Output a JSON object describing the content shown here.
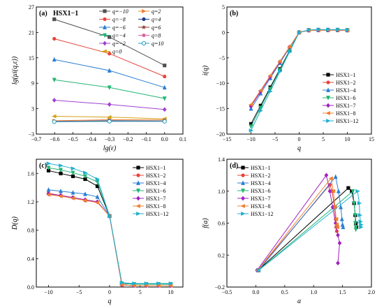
{
  "chart_data": [
    {
      "id": "a",
      "panel_label": "(a)",
      "title": "HSX1−1",
      "type": "line",
      "xlabel": "lg(ε)",
      "ylabel": "lg(μi(q,ε))",
      "xlim": [
        -0.7,
        0.1
      ],
      "ylim": [
        -3,
        27
      ],
      "xticks": [
        -0.7,
        -0.6,
        -0.5,
        -0.4,
        -0.3,
        -0.2,
        -0.1,
        0.0,
        0.1
      ],
      "xtick_labels": [
        "−0.7",
        "−0.6",
        "−0.5",
        "−0.4",
        "−0.3",
        "−0.2",
        "−0.1",
        "0.0",
        "0.1"
      ],
      "yticks": [
        -3,
        3,
        9,
        15,
        21,
        27
      ],
      "ytick_labels": [
        "−3",
        "3",
        "9",
        "15",
        "21",
        "27"
      ],
      "x": [
        -0.602,
        -0.301,
        0.0
      ],
      "legend_cols": 2,
      "series": [
        {
          "name": "q=−10",
          "marker": "square",
          "color": "#505050",
          "values": [
            24.1,
            19.9,
            13.2
          ]
        },
        {
          "name": "q=−8",
          "marker": "circle",
          "color": "#e8453c",
          "values": [
            19.5,
            16.0,
            10.6
          ]
        },
        {
          "name": "q=−6",
          "marker": "triangle-up",
          "color": "#2a7fd4",
          "values": [
            14.6,
            12.0,
            8.0
          ]
        },
        {
          "name": "q=−4",
          "marker": "triangle-down",
          "color": "#22b573",
          "values": [
            9.8,
            8.0,
            5.4
          ]
        },
        {
          "name": "q=−2",
          "marker": "diamond",
          "color": "#a040d0",
          "values": [
            5.0,
            4.0,
            2.8
          ]
        },
        {
          "name": "q=0",
          "marker": "triangle-left",
          "color": "#d4a017",
          "values": [
            1.2,
            1.0,
            0.6
          ]
        },
        {
          "name": "q=2",
          "marker": "triangle-right",
          "color": "#f08030",
          "values": [
            0.15,
            0.4,
            0.35
          ]
        },
        {
          "name": "q=4",
          "marker": "hexagon",
          "color": "#1a3a8a",
          "values": [
            0.02,
            0.15,
            0.1
          ]
        },
        {
          "name": "q=6",
          "marker": "star",
          "color": "#8b3a2a",
          "values": [
            -0.02,
            0.05,
            0.05
          ]
        },
        {
          "name": "q=8",
          "marker": "pentagon",
          "color": "#e060a0",
          "values": [
            -0.05,
            0.02,
            0.02
          ]
        },
        {
          "name": "q=10",
          "marker": "circle-open",
          "color": "#20a0c0",
          "values": [
            -0.08,
            0.0,
            0.0
          ]
        }
      ]
    },
    {
      "id": "b",
      "panel_label": "(b)",
      "type": "line",
      "xlabel": "q",
      "ylabel": "i(q)",
      "xlim": [
        -15,
        15
      ],
      "ylim": [
        -20,
        5
      ],
      "xticks": [
        -15,
        -10,
        -5,
        0,
        5,
        10,
        15
      ],
      "xtick_labels": [
        "−15",
        "−10",
        "−5",
        "0",
        "5",
        "10",
        "15"
      ],
      "yticks": [
        -20,
        -15,
        -10,
        -5,
        0,
        5
      ],
      "ytick_labels": [
        "−20",
        "−15",
        "−10",
        "−5",
        "0",
        "5"
      ],
      "x": [
        -10,
        -8,
        -6,
        -4,
        -2,
        0,
        2,
        4,
        6,
        8,
        10
      ],
      "legend_cols": 1,
      "series": [
        {
          "name": "HSX1−1",
          "marker": "square",
          "color": "#000000",
          "values": [
            -18.0,
            -14.4,
            -10.8,
            -7.2,
            -3.6,
            0.0,
            0.4,
            0.45,
            0.45,
            0.45,
            0.4
          ]
        },
        {
          "name": "HSX1−2",
          "marker": "circle",
          "color": "#e8453c",
          "values": [
            -14.5,
            -11.6,
            -8.7,
            -5.8,
            -2.9,
            0.0,
            0.4,
            0.45,
            0.45,
            0.45,
            0.4
          ]
        },
        {
          "name": "HSX1−4",
          "marker": "triangle-up",
          "color": "#2a7fd4",
          "values": [
            -15.0,
            -12.0,
            -9.0,
            -6.0,
            -3.0,
            0.0,
            0.45,
            0.5,
            0.5,
            0.5,
            0.45
          ]
        },
        {
          "name": "HSX1−6",
          "marker": "triangle-down",
          "color": "#22b573",
          "values": [
            -18.5,
            -14.8,
            -11.1,
            -7.4,
            -3.7,
            0.0,
            0.45,
            0.5,
            0.5,
            0.5,
            0.45
          ]
        },
        {
          "name": "HSX1−7",
          "marker": "diamond",
          "color": "#a020c0",
          "values": [
            -14.5,
            -11.6,
            -8.7,
            -5.8,
            -2.9,
            0.0,
            0.4,
            0.45,
            0.45,
            0.45,
            0.4
          ]
        },
        {
          "name": "HSX1−8",
          "marker": "triangle-left",
          "color": "#f08030",
          "values": [
            -14.2,
            -11.4,
            -8.5,
            -5.7,
            -2.85,
            0.0,
            0.4,
            0.45,
            0.45,
            0.45,
            0.4
          ]
        },
        {
          "name": "HSX1−12",
          "marker": "triangle-right",
          "color": "#20b0d0",
          "values": [
            -19.3,
            -15.4,
            -11.6,
            -7.7,
            -3.85,
            0.0,
            0.5,
            0.55,
            0.55,
            0.55,
            0.5
          ]
        }
      ]
    },
    {
      "id": "c",
      "panel_label": "(c)",
      "type": "line",
      "xlabel": "q",
      "ylabel": "D(q)",
      "xlim": [
        -12,
        12
      ],
      "ylim": [
        0.0,
        1.8
      ],
      "xticks": [
        -10,
        -5,
        0,
        5,
        10
      ],
      "xtick_labels": [
        "−10",
        "−5",
        "0",
        "5",
        "10"
      ],
      "yticks": [
        0.0,
        0.4,
        0.8,
        1.2,
        1.6
      ],
      "ytick_labels": [
        "0.0",
        "0.4",
        "0.8",
        "1.2",
        "1.6"
      ],
      "x": [
        -10,
        -8,
        -6,
        -4,
        -2,
        0,
        2,
        4,
        6,
        8,
        10
      ],
      "legend_cols": 1,
      "series": [
        {
          "name": "HSX1−1",
          "marker": "square",
          "color": "#000000",
          "values": [
            1.64,
            1.6,
            1.56,
            1.52,
            1.42,
            1.0,
            0.05,
            0.04,
            0.04,
            0.04,
            0.04
          ]
        },
        {
          "name": "HSX1−2",
          "marker": "circle",
          "color": "#e8453c",
          "values": [
            1.32,
            1.29,
            1.26,
            1.22,
            1.2,
            1.0,
            0.03,
            0.02,
            0.02,
            0.02,
            0.02
          ]
        },
        {
          "name": "HSX1−4",
          "marker": "triangle-up",
          "color": "#2a7fd4",
          "values": [
            1.37,
            1.35,
            1.33,
            1.31,
            1.27,
            1.0,
            0.05,
            0.04,
            0.04,
            0.04,
            0.04
          ]
        },
        {
          "name": "HSX1−6",
          "marker": "triangle-down",
          "color": "#22b573",
          "values": [
            1.68,
            1.65,
            1.61,
            1.56,
            1.48,
            1.0,
            0.05,
            0.04,
            0.04,
            0.04,
            0.04
          ]
        },
        {
          "name": "HSX1−7",
          "marker": "diamond",
          "color": "#a020c0",
          "values": [
            1.31,
            1.29,
            1.26,
            1.23,
            1.2,
            1.0,
            0.03,
            0.02,
            0.02,
            0.02,
            0.02
          ]
        },
        {
          "name": "HSX1−8",
          "marker": "triangle-left",
          "color": "#f08030",
          "values": [
            1.3,
            1.28,
            1.25,
            1.22,
            1.19,
            1.0,
            0.03,
            0.02,
            0.02,
            0.02,
            0.02
          ]
        },
        {
          "name": "HSX1−12",
          "marker": "triangle-right",
          "color": "#20b0d0",
          "values": [
            1.74,
            1.71,
            1.67,
            1.61,
            1.52,
            1.0,
            0.06,
            0.05,
            0.05,
            0.05,
            0.05
          ]
        }
      ]
    },
    {
      "id": "d",
      "panel_label": "(d)",
      "type": "line",
      "xlabel": "a",
      "ylabel": "f(a)",
      "xlim": [
        -0.5,
        2.0
      ],
      "ylim": [
        -0.2,
        1.4
      ],
      "xticks": [
        -0.5,
        0.0,
        0.5,
        1.0,
        1.5,
        2.0
      ],
      "xtick_labels": [
        "−0.5",
        "0.0",
        "0.5",
        "1.0",
        "1.5",
        "2.0"
      ],
      "yticks": [
        -0.2,
        0.2,
        0.6,
        1.0,
        1.4
      ],
      "ytick_labels": [
        "−0.2",
        "0.2",
        "0.6",
        "1.0",
        "1.4"
      ],
      "legend_cols": 1,
      "series": [
        {
          "name": "HSX1−1",
          "marker": "square",
          "color": "#000000",
          "points": [
            [
              0.04,
              0.01
            ],
            [
              1.6,
              1.04
            ],
            [
              1.66,
              1.0
            ],
            [
              1.7,
              0.85
            ],
            [
              1.72,
              0.7
            ],
            [
              1.73,
              0.6
            ],
            [
              1.74,
              0.55
            ]
          ]
        },
        {
          "name": "HSX1−2",
          "marker": "circle",
          "color": "#e8453c",
          "points": [
            [
              0.03,
              0.01
            ],
            [
              1.28,
              1.08
            ],
            [
              1.32,
              1.0
            ],
            [
              1.36,
              0.8
            ],
            [
              1.38,
              0.65
            ],
            [
              1.39,
              0.55
            ],
            [
              1.4,
              0.5
            ]
          ]
        },
        {
          "name": "HSX1−4",
          "marker": "triangle-up",
          "color": "#2a7fd4",
          "points": [
            [
              0.05,
              0.01
            ],
            [
              1.38,
              1.18
            ],
            [
              1.43,
              1.0
            ],
            [
              1.47,
              0.8
            ],
            [
              1.49,
              0.65
            ],
            [
              1.5,
              0.58
            ],
            [
              1.51,
              0.55
            ]
          ]
        },
        {
          "name": "HSX1−6",
          "marker": "triangle-down",
          "color": "#22b573",
          "points": [
            [
              0.05,
              0.01
            ],
            [
              1.68,
              1.0
            ],
            [
              1.7,
              0.85
            ],
            [
              1.72,
              0.7
            ],
            [
              1.72,
              0.6
            ],
            [
              1.73,
              0.55
            ],
            [
              1.73,
              0.52
            ]
          ]
        },
        {
          "name": "HSX1−7",
          "marker": "diamond",
          "color": "#a020c0",
          "points": [
            [
              0.02,
              0.01
            ],
            [
              1.22,
              1.2
            ],
            [
              1.28,
              1.0
            ],
            [
              1.33,
              0.8
            ],
            [
              1.38,
              0.6
            ],
            [
              1.42,
              0.45
            ],
            [
              1.45,
              0.35
            ],
            [
              1.42,
              0.1
            ]
          ]
        },
        {
          "name": "HSX1−8",
          "marker": "triangle-left",
          "color": "#f08030",
          "points": [
            [
              0.03,
              0.01
            ],
            [
              1.3,
              1.16
            ],
            [
              1.34,
              1.0
            ],
            [
              1.37,
              0.8
            ],
            [
              1.39,
              0.65
            ],
            [
              1.4,
              0.58
            ],
            [
              1.41,
              0.55
            ]
          ]
        },
        {
          "name": "HSX1−12",
          "marker": "triangle-right",
          "color": "#20b0d0",
          "points": [
            [
              0.05,
              0.01
            ],
            [
              1.76,
              1.0
            ],
            [
              1.79,
              0.85
            ],
            [
              1.8,
              0.7
            ],
            [
              1.81,
              0.62
            ],
            [
              1.82,
              0.58
            ],
            [
              1.82,
              0.55
            ]
          ]
        }
      ]
    }
  ]
}
